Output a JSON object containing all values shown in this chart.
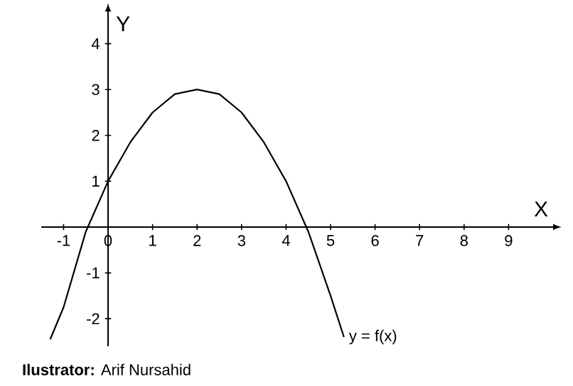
{
  "chart_data": {
    "type": "line",
    "xlabel": "X",
    "ylabel": "Y",
    "xlim": [
      -1.5,
      10
    ],
    "ylim": [
      -2.6,
      4.7
    ],
    "xticks": [
      -1,
      0,
      1,
      2,
      3,
      4,
      5,
      6,
      7,
      8,
      9
    ],
    "yticks": [
      -2,
      -1,
      1,
      2,
      3,
      4
    ],
    "x": [
      -1.3,
      -1,
      -0.5,
      0,
      0.5,
      1,
      1.5,
      2,
      2.5,
      3,
      3.5,
      4,
      4.5,
      5,
      5.3
    ],
    "series": [
      {
        "name": "y = f(x)",
        "color": "#000000",
        "values": [
          -2.45,
          -1.75,
          -0.1,
          1,
          1.85,
          2.5,
          2.9,
          3,
          2.9,
          2.5,
          1.85,
          1,
          -0.1,
          -1.5,
          -2.4
        ]
      }
    ],
    "legend": false,
    "grid": false,
    "marker": "none",
    "line_style": "solid",
    "annotations": [
      "**Ilustrator:** Arif Nursahid"
    ]
  }
}
